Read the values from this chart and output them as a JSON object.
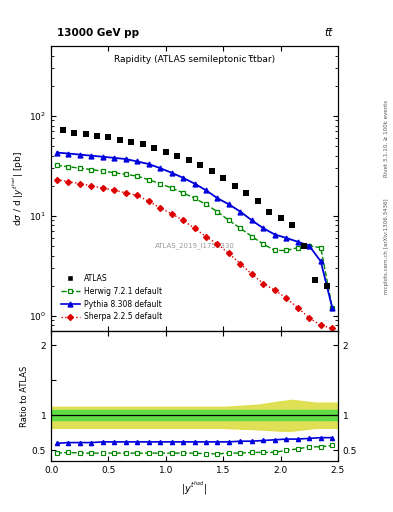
{
  "title_main": "13000 GeV pp",
  "title_right": "tt̅",
  "plot_title": "Rapidity (ATLAS semileptonic t̅tbar)",
  "ylabel_main": "dσ / d |y^{t_{had}}| [pb]",
  "ylabel_ratio": "Ratio to ATLAS",
  "xlabel": "|y^{t_{had}}|",
  "annotation": "ATLAS_2019_I1750330",
  "rivet_label": "Rivet 3.1.10, ≥ 100k events",
  "mcplots_label": "mcplots.cern.ch [arXiv:1306.3436]",
  "x_atlas": [
    0.1,
    0.2,
    0.3,
    0.4,
    0.5,
    0.6,
    0.7,
    0.8,
    0.9,
    1.0,
    1.1,
    1.2,
    1.3,
    1.4,
    1.5,
    1.6,
    1.7,
    1.8,
    1.9,
    2.0,
    2.1,
    2.2,
    2.3,
    2.4
  ],
  "y_atlas": [
    72,
    68,
    66,
    63,
    61,
    58,
    55,
    52,
    48,
    44,
    40,
    36,
    32,
    28,
    24,
    20,
    17,
    14,
    11,
    9.5,
    8,
    5,
    2.3,
    2.0
  ],
  "x_herwig": [
    0.05,
    0.15,
    0.25,
    0.35,
    0.45,
    0.55,
    0.65,
    0.75,
    0.85,
    0.95,
    1.05,
    1.15,
    1.25,
    1.35,
    1.45,
    1.55,
    1.65,
    1.75,
    1.85,
    1.95,
    2.05,
    2.15,
    2.25,
    2.35,
    2.45
  ],
  "y_herwig": [
    32,
    31,
    30,
    29,
    28,
    27,
    26,
    25,
    23,
    21,
    19,
    17,
    15,
    13,
    11,
    9,
    7.5,
    6.2,
    5.2,
    4.5,
    4.5,
    4.8,
    5.0,
    4.8,
    1.2
  ],
  "x_pythia": [
    0.05,
    0.15,
    0.25,
    0.35,
    0.45,
    0.55,
    0.65,
    0.75,
    0.85,
    0.95,
    1.05,
    1.15,
    1.25,
    1.35,
    1.45,
    1.55,
    1.65,
    1.75,
    1.85,
    1.95,
    2.05,
    2.15,
    2.25,
    2.35,
    2.45
  ],
  "y_pythia": [
    43,
    42,
    41,
    40,
    39,
    38,
    37,
    35,
    33,
    30,
    27,
    24,
    21,
    18,
    15,
    13,
    11,
    9,
    7.5,
    6.5,
    6.0,
    5.5,
    5.0,
    3.5,
    1.2
  ],
  "x_sherpa": [
    0.05,
    0.15,
    0.25,
    0.35,
    0.45,
    0.55,
    0.65,
    0.75,
    0.85,
    0.95,
    1.05,
    1.15,
    1.25,
    1.35,
    1.45,
    1.55,
    1.65,
    1.75,
    1.85,
    1.95,
    2.05,
    2.15,
    2.25,
    2.35,
    2.45
  ],
  "y_sherpa": [
    23,
    22,
    21,
    20,
    19,
    18,
    17,
    16,
    14,
    12,
    10.5,
    9,
    7.5,
    6.2,
    5.2,
    4.2,
    3.3,
    2.6,
    2.1,
    1.8,
    1.5,
    1.2,
    0.95,
    0.8,
    0.75
  ],
  "ratio_x": [
    0.05,
    0.15,
    0.25,
    0.35,
    0.45,
    0.55,
    0.65,
    0.75,
    0.85,
    0.95,
    1.05,
    1.15,
    1.25,
    1.35,
    1.45,
    1.55,
    1.65,
    1.75,
    1.85,
    1.95,
    2.05,
    2.15,
    2.25,
    2.35,
    2.45
  ],
  "ratio_herwig": [
    0.46,
    0.47,
    0.46,
    0.46,
    0.46,
    0.46,
    0.46,
    0.46,
    0.46,
    0.46,
    0.46,
    0.46,
    0.46,
    0.45,
    0.45,
    0.46,
    0.46,
    0.47,
    0.47,
    0.47,
    0.5,
    0.52,
    0.55,
    0.55,
    0.57
  ],
  "ratio_pythia": [
    0.6,
    0.61,
    0.61,
    0.61,
    0.62,
    0.62,
    0.62,
    0.62,
    0.62,
    0.62,
    0.62,
    0.62,
    0.62,
    0.62,
    0.62,
    0.62,
    0.63,
    0.63,
    0.64,
    0.65,
    0.66,
    0.66,
    0.67,
    0.68,
    0.68
  ],
  "band_x": [
    0.0,
    0.5,
    1.0,
    1.5,
    1.8,
    2.0,
    2.1,
    2.2,
    2.3,
    2.4,
    2.5
  ],
  "band_green_lo": [
    0.93,
    0.93,
    0.93,
    0.93,
    0.93,
    0.93,
    0.93,
    0.93,
    0.93,
    0.93,
    0.93
  ],
  "band_green_hi": [
    1.07,
    1.07,
    1.07,
    1.07,
    1.07,
    1.07,
    1.07,
    1.07,
    1.07,
    1.07,
    1.07
  ],
  "band_yellow_lo": [
    0.82,
    0.82,
    0.82,
    0.82,
    0.8,
    0.78,
    0.78,
    0.8,
    0.82,
    0.82,
    0.82
  ],
  "band_yellow_hi": [
    1.12,
    1.12,
    1.12,
    1.12,
    1.15,
    1.2,
    1.22,
    1.2,
    1.18,
    1.18,
    1.18
  ],
  "color_atlas": "#000000",
  "color_herwig": "#008800",
  "color_pythia": "#0000dd",
  "color_sherpa": "#dd0000",
  "color_band_green": "#44dd44",
  "color_band_yellow": "#dddd44",
  "xlim": [
    0,
    2.5
  ],
  "ylim_main": [
    0.7,
    500
  ],
  "ylim_ratio": [
    0.35,
    2.2
  ]
}
